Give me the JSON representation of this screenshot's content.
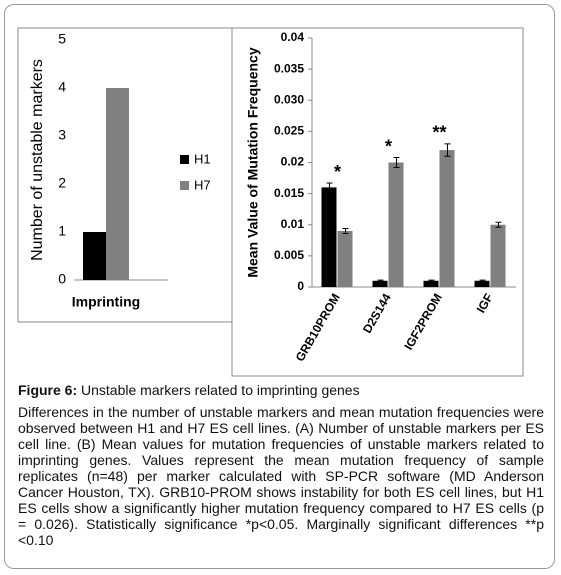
{
  "chart_data": [
    {
      "type": "bar",
      "ylabel": "Number of unstable markers",
      "categories": [
        "Imprinting"
      ],
      "series": [
        {
          "name": "H1",
          "color": "#000000",
          "values": [
            1
          ]
        },
        {
          "name": "H7",
          "color": "#808080",
          "values": [
            4
          ]
        }
      ],
      "ylim": [
        0,
        5
      ],
      "yticks": [
        0,
        1,
        2,
        3,
        4,
        5
      ],
      "legend": "right"
    },
    {
      "type": "bar",
      "ylabel": "Mean Value of Mutation Frequency",
      "categories": [
        "GRB10PROM",
        "D2S144",
        "IGF2PROM",
        "IGF"
      ],
      "series": [
        {
          "color": "#000000",
          "values": [
            0.016,
            0.001,
            0.001,
            0.001
          ],
          "errors": [
            0.0007,
            0.0001,
            0.0001,
            0.0001
          ]
        },
        {
          "color": "#808080",
          "values": [
            0.009,
            0.02,
            0.022,
            0.01
          ],
          "errors": [
            0.0004,
            0.0008,
            0.001,
            0.0004
          ]
        }
      ],
      "annotations": [
        "*",
        "*",
        "**",
        null
      ],
      "ylim": [
        0,
        0.04
      ],
      "yticks": [
        0,
        0.005,
        0.01,
        0.015,
        0.02,
        0.025,
        {
          "value": 0.03,
          "label": "0.030"
        },
        0.035,
        0.04
      ]
    }
  ],
  "caption": {
    "label": "Figure 6:",
    "title": "Unstable markers related to imprinting genes",
    "body": "Differences in the number of unstable markers and mean mutation frequencies were observed between H1 and H7 ES cell lines. (A) Number of unstable markers per ES cell line. (B) Mean values for mutation frequencies of unstable markers related to imprinting genes. Values represent the mean mutation frequency of sample replicates (n=48) per marker calculated with SP-PCR software (MD Anderson Cancer Houston, TX). GRB10-PROM shows instability for both ES cell lines, but H1 ES cells show a significantly higher mutation frequency compared to H7 ES cells (p = 0.026). Statistically significance *p<0.05. Marginally significant differences **p <0.10"
  }
}
